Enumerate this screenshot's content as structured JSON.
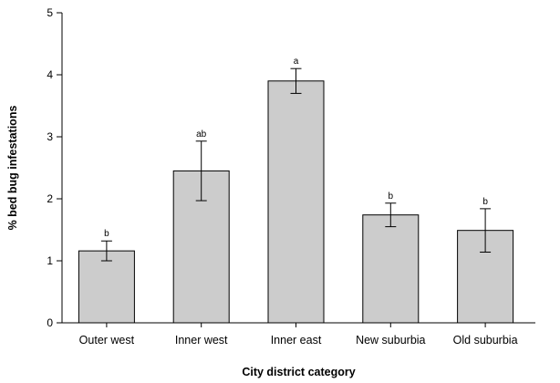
{
  "chart_data": {
    "type": "bar",
    "title": "",
    "xlabel": "City district category",
    "ylabel": "% bed bug infestations",
    "ylim": [
      0,
      5
    ],
    "yticks": [
      "0",
      "1",
      "2",
      "3",
      "4",
      "5"
    ],
    "categories": [
      "Outer west",
      "Inner west",
      "Inner east",
      "New suburbia",
      "Old suburbia"
    ],
    "values": [
      1.16,
      2.45,
      3.9,
      1.74,
      1.49
    ],
    "error_upper": [
      1.32,
      2.93,
      4.1,
      1.93,
      1.84
    ],
    "error_lower": [
      1.0,
      1.97,
      3.7,
      1.55,
      1.14
    ],
    "significance_labels": [
      "b",
      "ab",
      "a",
      "b",
      "b"
    ],
    "bar_color": "#cccccc",
    "grid": false,
    "legend": "none"
  }
}
